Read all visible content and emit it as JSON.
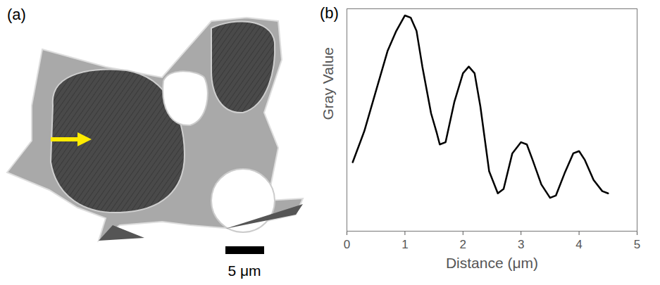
{
  "image": {
    "panel_label": "(a)",
    "scale_bar": "5 μm"
  },
  "chart_data": {
    "type": "line",
    "panel_label": "(b)",
    "x_label": "Distance (μm)",
    "y_label": "Gray Value",
    "x": [
      0.1,
      0.3,
      0.5,
      0.7,
      0.85,
      1.0,
      1.1,
      1.2,
      1.3,
      1.45,
      1.55,
      1.6,
      1.7,
      1.85,
      2.0,
      2.1,
      2.2,
      2.3,
      2.45,
      2.6,
      2.7,
      2.85,
      3.0,
      3.1,
      3.2,
      3.35,
      3.5,
      3.6,
      3.75,
      3.9,
      4.0,
      4.1,
      4.25,
      4.4,
      4.5
    ],
    "values": [
      0.31,
      0.45,
      0.63,
      0.81,
      0.9,
      0.97,
      0.96,
      0.9,
      0.74,
      0.53,
      0.44,
      0.39,
      0.4,
      0.58,
      0.71,
      0.74,
      0.71,
      0.56,
      0.27,
      0.17,
      0.19,
      0.35,
      0.4,
      0.39,
      0.32,
      0.21,
      0.15,
      0.16,
      0.26,
      0.35,
      0.36,
      0.32,
      0.23,
      0.18,
      0.17
    ],
    "color": "#000000",
    "xlim": [
      0,
      5
    ],
    "xticks": [
      0,
      1,
      2,
      3,
      4,
      5
    ],
    "ylim": [
      0,
      1
    ],
    "yticks": [],
    "tick_labels": "x"
  }
}
